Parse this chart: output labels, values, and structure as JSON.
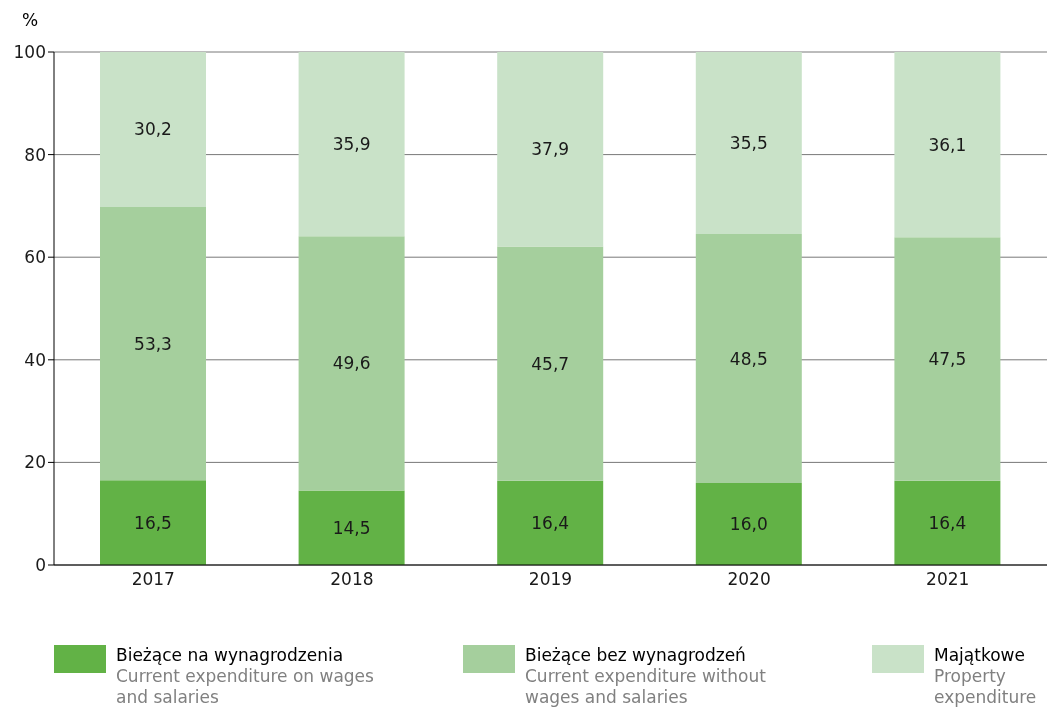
{
  "chart_data": {
    "type": "bar",
    "stacked": true,
    "ylabel": "%",
    "categories": [
      "2017",
      "2018",
      "2019",
      "2020",
      "2021"
    ],
    "series": [
      {
        "name": "Bieżące na wynagrodzenia\nCurrent expenditure on wages and salaries",
        "color": "#62b246",
        "values": [
          16.5,
          14.5,
          16.4,
          16.0,
          16.4
        ],
        "value_labels": [
          "16,5",
          "14,5",
          "16,4",
          "16,0",
          "16,4"
        ]
      },
      {
        "name": "Bieżące bez wynagrodzeń\nCurrent expenditure without wages and salaries",
        "color": "#a5cf9d",
        "values": [
          53.3,
          49.6,
          45.7,
          48.5,
          47.5
        ],
        "value_labels": [
          "53,3",
          "49,6",
          "45,7",
          "48,5",
          "47,5"
        ]
      },
      {
        "name": "Majątkowe\nProperty expenditure",
        "color": "#c9e2c8",
        "values": [
          30.2,
          35.9,
          37.9,
          35.5,
          36.1
        ],
        "value_labels": [
          "30,2",
          "35,9",
          "37,9",
          "35,5",
          "36,1"
        ]
      }
    ],
    "ylim": [
      0,
      100
    ],
    "yticks": [
      0,
      20,
      40,
      60,
      80,
      100
    ],
    "grid": "y",
    "legend": "bottom"
  }
}
